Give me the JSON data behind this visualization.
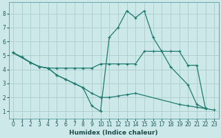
{
  "bg_color": "#cce8e8",
  "grid_color": "#b0d0d0",
  "line_color": "#1e7a6e",
  "xlabel": "Humidex (Indice chaleur)",
  "xlim": [
    -0.5,
    23.5
  ],
  "ylim": [
    0.5,
    8.8
  ],
  "yticks": [
    1,
    2,
    3,
    4,
    5,
    6,
    7,
    8
  ],
  "xticks": [
    0,
    1,
    2,
    3,
    4,
    5,
    6,
    7,
    8,
    9,
    10,
    11,
    12,
    13,
    14,
    15,
    16,
    17,
    18,
    19,
    20,
    21,
    22,
    23
  ],
  "lines": [
    {
      "x": [
        0,
        1,
        2,
        3,
        4,
        5,
        6,
        7,
        8,
        9,
        10,
        11,
        12,
        13,
        14,
        15,
        16,
        17,
        18,
        19,
        20,
        21,
        22
      ],
      "y": [
        5.2,
        4.9,
        4.5,
        4.2,
        4.1,
        4.1,
        4.1,
        4.1,
        4.1,
        4.1,
        4.4,
        4.4,
        4.4,
        4.4,
        4.4,
        5.3,
        5.3,
        5.3,
        5.3,
        5.3,
        4.3,
        4.3,
        1.2
      ]
    },
    {
      "x": [
        0,
        2,
        3,
        4,
        5,
        6,
        7,
        8,
        9,
        10,
        11,
        12,
        13,
        14,
        15,
        16,
        17,
        18,
        20,
        21,
        22
      ],
      "y": [
        5.2,
        4.5,
        4.2,
        4.1,
        3.6,
        3.3,
        3.0,
        2.7,
        1.4,
        1.0,
        6.3,
        7.0,
        8.2,
        7.7,
        8.2,
        6.3,
        5.3,
        4.2,
        2.9,
        1.5,
        1.2
      ]
    },
    {
      "x": [
        0,
        2,
        3,
        4,
        5,
        6,
        7,
        8,
        9,
        10,
        11,
        12,
        13,
        14,
        19,
        20,
        21,
        22,
        23
      ],
      "y": [
        5.2,
        4.5,
        4.2,
        4.1,
        3.6,
        3.3,
        3.0,
        2.7,
        2.3,
        2.0,
        2.0,
        2.1,
        2.2,
        2.3,
        1.5,
        1.4,
        1.3,
        1.2,
        1.1
      ]
    }
  ]
}
